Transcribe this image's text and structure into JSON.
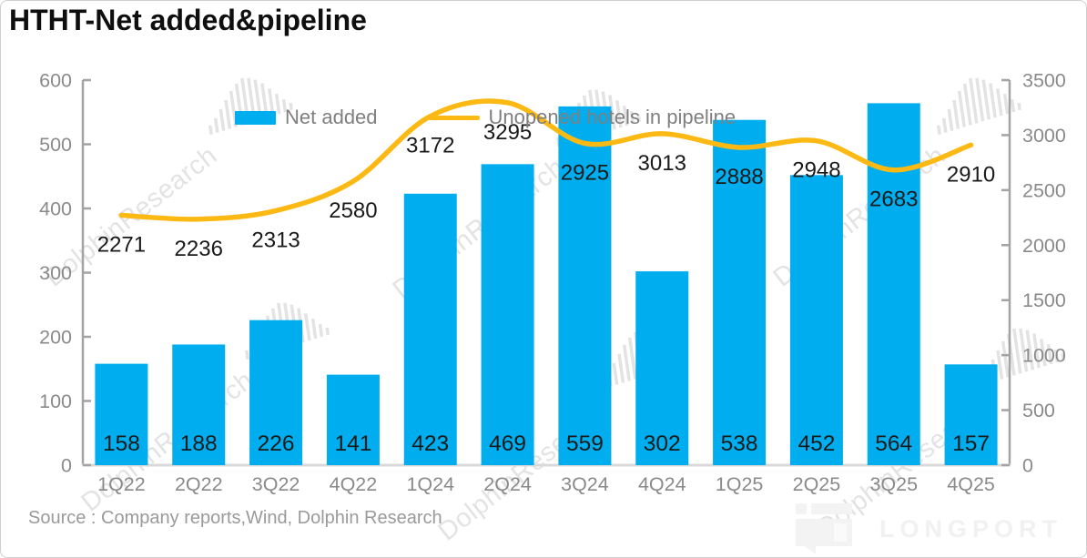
{
  "title": "HTHT-Net added&pipeline",
  "source_note": "Source : Company reports,Wind, Dolphin Research",
  "watermark_text": "DolphinResearch",
  "brand_name": "LONGPORT",
  "legend": [
    {
      "label": "Net added",
      "type": "bar",
      "color": "#00AEEF"
    },
    {
      "label": "Unopened hotels in pipeline",
      "type": "line",
      "color": "#FCB813"
    }
  ],
  "chart_data": {
    "type": "bar+line",
    "title": "HTHT-Net added&pipeline",
    "categories": [
      "1Q22",
      "2Q22",
      "3Q22",
      "4Q22",
      "1Q24",
      "2Q24",
      "3Q24",
      "4Q24",
      "1Q25",
      "2Q25",
      "3Q25",
      "4Q25"
    ],
    "series": [
      {
        "name": "Net added",
        "type": "bar",
        "axis": "left",
        "color": "#00AEEF",
        "values": [
          158,
          188,
          226,
          141,
          423,
          469,
          559,
          302,
          538,
          452,
          564,
          157
        ]
      },
      {
        "name": "Unopened hotels in pipeline",
        "type": "line",
        "axis": "right",
        "color": "#FCB813",
        "values": [
          2271,
          2236,
          2313,
          2580,
          3172,
          3295,
          2925,
          3013,
          2888,
          2948,
          2683,
          2910
        ]
      }
    ],
    "left_axis": {
      "range": [
        0,
        600
      ],
      "ticks": [
        0,
        100,
        200,
        300,
        400,
        500,
        600
      ]
    },
    "right_axis": {
      "range": [
        0,
        3500
      ],
      "ticks": [
        0,
        500,
        1000,
        1500,
        2000,
        2500,
        3000,
        3500
      ]
    },
    "grid": false,
    "legend_position": "top-center",
    "data_labels": true
  },
  "colors": {
    "bar": "#00AEEF",
    "line": "#FCB813",
    "axis": "#a3a3a3",
    "baseline": "#d9d9d9",
    "tick_label": "#8a8a8a",
    "data_label": "#1a1a1a",
    "legend_text": "#7f7f7f",
    "watermark": "#e3e3e3",
    "source_text": "#9a9a9a",
    "brand": "#f1f1f1"
  }
}
